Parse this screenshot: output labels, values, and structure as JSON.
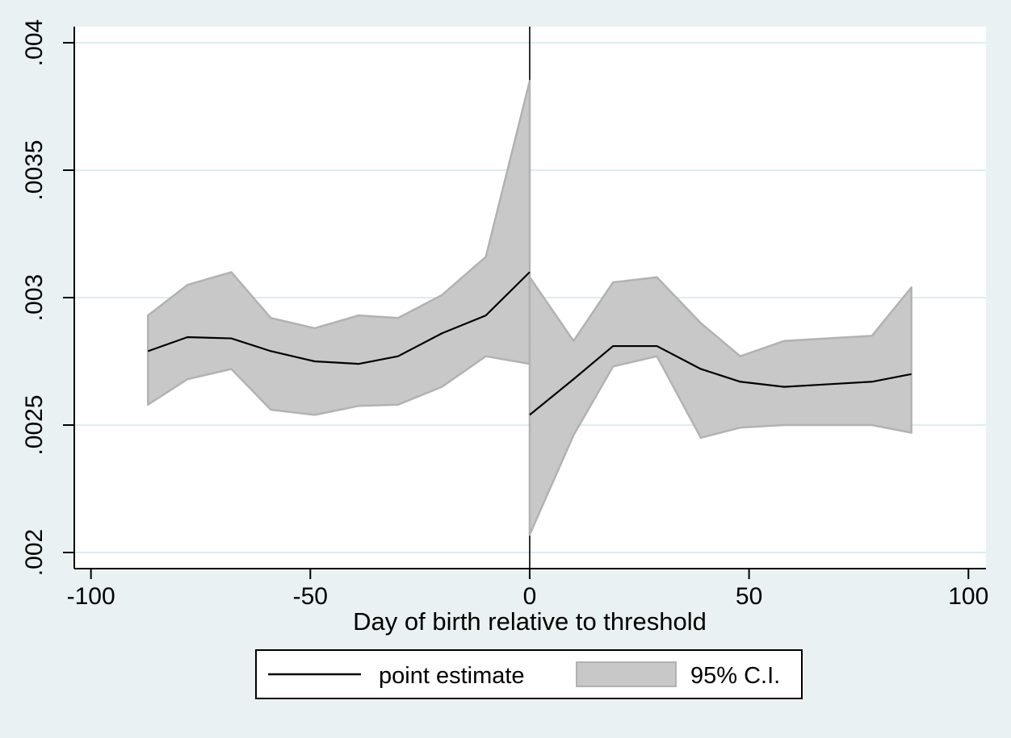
{
  "figure": {
    "background_color": "#eaf1f2",
    "plot_background_color": "#ffffff",
    "grid_color": "#deecef",
    "axis_color": "#000000",
    "band_fill_color": "#c8c8c8",
    "band_edge_color": "#b2b2b2",
    "line_color": "#000000",
    "reference_line_color": "#000000"
  },
  "legend": {
    "line_label": "point estimate",
    "band_label": "95% C.I."
  },
  "chart_data": {
    "type": "line",
    "title": "",
    "xlabel": "Day of birth relative to threshold",
    "ylabel": "",
    "grid": true,
    "legend_position": "bottom-center",
    "xlim": [
      -103.8,
      104.0
    ],
    "ylim": [
      0.0019367,
      0.0040633
    ],
    "x_ticks": [
      -100,
      -50,
      0,
      50,
      100
    ],
    "x_tick_labels": [
      "-100",
      "-50",
      "0",
      "50",
      "100"
    ],
    "y_ticks": [
      0.002,
      0.0025,
      0.003,
      0.0035,
      0.004
    ],
    "y_tick_labels": [
      ".002",
      ".0025",
      ".003",
      ".0035",
      ".004"
    ],
    "reference_line_x": 0,
    "ci_label": "95% C.I.",
    "series": [
      {
        "name": "point estimate (left of threshold)",
        "x": [
          -87,
          -78,
          -68,
          -59,
          -49,
          -39,
          -30,
          -20,
          -10,
          0
        ],
        "y": [
          0.00279,
          0.002845,
          0.00284,
          0.00279,
          0.00275,
          0.00274,
          0.00277,
          0.00286,
          0.00293,
          0.0031
        ],
        "ci_lower": [
          0.00258,
          0.00268,
          0.00272,
          0.00256,
          0.00254,
          0.002575,
          0.00258,
          0.00265,
          0.00277,
          0.00274
        ],
        "ci_upper": [
          0.00293,
          0.00305,
          0.0031,
          0.00292,
          0.00288,
          0.00293,
          0.00292,
          0.00301,
          0.00316,
          0.00385
        ]
      },
      {
        "name": "point estimate (right of threshold)",
        "x": [
          0,
          10,
          19,
          29,
          39,
          48,
          58,
          68,
          78,
          87
        ],
        "y": [
          0.00254,
          0.00268,
          0.00281,
          0.00281,
          0.00272,
          0.00267,
          0.00265,
          0.00266,
          0.00267,
          0.0027
        ],
        "ci_lower": [
          0.00207,
          0.00246,
          0.00273,
          0.00277,
          0.00245,
          0.00249,
          0.0025,
          0.0025,
          0.0025,
          0.00247
        ],
        "ci_upper": [
          0.00308,
          0.00283,
          0.00306,
          0.00308,
          0.0029,
          0.00277,
          0.00283,
          0.00284,
          0.00285,
          0.00304
        ]
      }
    ]
  }
}
